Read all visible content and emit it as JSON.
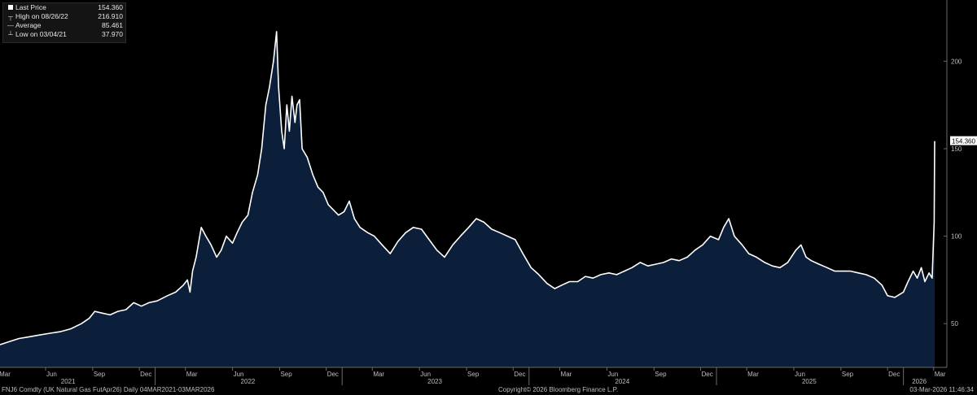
{
  "legend": {
    "items": [
      {
        "icon": "square-icon",
        "label": "Last Price",
        "value": "154.360"
      },
      {
        "icon": "high-marker-icon",
        "label": "High on 08/26/22",
        "value": "216.910"
      },
      {
        "icon": "average-marker-icon",
        "label": "Average",
        "value": "85.461"
      },
      {
        "icon": "low-marker-icon",
        "label": "Low on 03/04/21",
        "value": "37.970"
      }
    ]
  },
  "footer": {
    "left": "FNJ6 Comdty (UK Natural Gas FutApr26) Daily 04MAR2021-03MAR2026",
    "center": "Copyright© 2026 Bloomberg Finance L.P.",
    "right": "03-Mar-2026 11:46:34"
  },
  "colors": {
    "background": "#000000",
    "area_fill": "#0b1e3a",
    "line": "#ffffff"
  },
  "chart_data": {
    "type": "area",
    "title": "",
    "xlabel": "",
    "ylabel": "",
    "ylim": [
      25,
      235
    ],
    "xlim": [
      "2021-03-04",
      "2026-03-03"
    ],
    "y_axis_side": "right",
    "y_ticks": [
      50,
      100,
      150,
      200
    ],
    "last_price_label": "154.360",
    "month_ticks": [
      {
        "date": "2021-03-01",
        "label": "Mar"
      },
      {
        "date": "2021-06-01",
        "label": "Jun"
      },
      {
        "date": "2021-09-01",
        "label": "Sep"
      },
      {
        "date": "2021-12-01",
        "label": "Dec"
      },
      {
        "date": "2022-03-01",
        "label": "Mar"
      },
      {
        "date": "2022-06-01",
        "label": "Jun"
      },
      {
        "date": "2022-09-01",
        "label": "Sep"
      },
      {
        "date": "2022-12-01",
        "label": "Dec"
      },
      {
        "date": "2023-03-01",
        "label": "Mar"
      },
      {
        "date": "2023-06-01",
        "label": "Jun"
      },
      {
        "date": "2023-09-01",
        "label": "Sep"
      },
      {
        "date": "2023-12-01",
        "label": "Dec"
      },
      {
        "date": "2024-03-01",
        "label": "Mar"
      },
      {
        "date": "2024-06-01",
        "label": "Jun"
      },
      {
        "date": "2024-09-01",
        "label": "Sep"
      },
      {
        "date": "2024-12-01",
        "label": "Dec"
      },
      {
        "date": "2025-03-01",
        "label": "Mar"
      },
      {
        "date": "2025-06-01",
        "label": "Jun"
      },
      {
        "date": "2025-09-01",
        "label": "Sep"
      },
      {
        "date": "2025-12-01",
        "label": "Dec"
      },
      {
        "date": "2026-03-01",
        "label": "Mar"
      }
    ],
    "year_labels": [
      {
        "date": "2021-07-15",
        "label": "2021"
      },
      {
        "date": "2022-07-01",
        "label": "2022"
      },
      {
        "date": "2023-07-01",
        "label": "2023"
      },
      {
        "date": "2024-07-01",
        "label": "2024"
      },
      {
        "date": "2025-07-01",
        "label": "2025"
      },
      {
        "date": "2026-02-01",
        "label": "2026"
      }
    ],
    "year_boundaries": [
      "2022-01-01",
      "2023-01-01",
      "2024-01-01",
      "2025-01-01",
      "2026-01-01"
    ],
    "series": [
      {
        "values": [
          [
            "2021-03-04",
            37.97
          ],
          [
            "2021-03-20",
            39.5
          ],
          [
            "2021-04-10",
            41.5
          ],
          [
            "2021-05-01",
            42.5
          ],
          [
            "2021-05-20",
            43.5
          ],
          [
            "2021-06-10",
            44.5
          ],
          [
            "2021-07-01",
            45.5
          ],
          [
            "2021-07-20",
            47
          ],
          [
            "2021-08-10",
            50
          ],
          [
            "2021-08-25",
            53
          ],
          [
            "2021-09-05",
            57
          ],
          [
            "2021-09-20",
            56
          ],
          [
            "2021-10-05",
            55
          ],
          [
            "2021-10-20",
            57
          ],
          [
            "2021-11-05",
            58
          ],
          [
            "2021-11-20",
            62
          ],
          [
            "2021-12-05",
            60
          ],
          [
            "2021-12-20",
            62
          ],
          [
            "2022-01-05",
            63
          ],
          [
            "2022-01-25",
            66
          ],
          [
            "2022-02-10",
            68
          ],
          [
            "2022-02-25",
            72
          ],
          [
            "2022-03-05",
            75
          ],
          [
            "2022-03-10",
            68
          ],
          [
            "2022-03-15",
            80
          ],
          [
            "2022-03-22",
            88
          ],
          [
            "2022-04-01",
            105
          ],
          [
            "2022-04-10",
            100
          ],
          [
            "2022-04-20",
            95
          ],
          [
            "2022-05-01",
            88
          ],
          [
            "2022-05-10",
            92
          ],
          [
            "2022-05-20",
            100
          ],
          [
            "2022-06-01",
            96
          ],
          [
            "2022-06-10",
            102
          ],
          [
            "2022-06-20",
            108
          ],
          [
            "2022-07-01",
            112
          ],
          [
            "2022-07-10",
            125
          ],
          [
            "2022-07-20",
            135
          ],
          [
            "2022-07-28",
            150
          ],
          [
            "2022-08-05",
            175
          ],
          [
            "2022-08-12",
            185
          ],
          [
            "2022-08-20",
            200
          ],
          [
            "2022-08-26",
            216.91
          ],
          [
            "2022-08-30",
            185
          ],
          [
            "2022-09-05",
            160
          ],
          [
            "2022-09-10",
            150
          ],
          [
            "2022-09-15",
            175
          ],
          [
            "2022-09-20",
            160
          ],
          [
            "2022-09-25",
            180
          ],
          [
            "2022-10-01",
            165
          ],
          [
            "2022-10-05",
            175
          ],
          [
            "2022-10-10",
            178
          ],
          [
            "2022-10-15",
            150
          ],
          [
            "2022-10-25",
            145
          ],
          [
            "2022-11-05",
            135
          ],
          [
            "2022-11-15",
            128
          ],
          [
            "2022-11-25",
            125
          ],
          [
            "2022-12-05",
            118
          ],
          [
            "2022-12-15",
            115
          ],
          [
            "2022-12-25",
            112
          ],
          [
            "2023-01-05",
            114
          ],
          [
            "2023-01-15",
            120
          ],
          [
            "2023-01-25",
            110
          ],
          [
            "2023-02-05",
            105
          ],
          [
            "2023-02-20",
            102
          ],
          [
            "2023-03-05",
            100
          ],
          [
            "2023-03-20",
            95
          ],
          [
            "2023-04-05",
            90
          ],
          [
            "2023-04-20",
            97
          ],
          [
            "2023-05-05",
            102
          ],
          [
            "2023-05-20",
            105
          ],
          [
            "2023-06-05",
            104
          ],
          [
            "2023-06-20",
            98
          ],
          [
            "2023-07-05",
            92
          ],
          [
            "2023-07-20",
            88
          ],
          [
            "2023-08-05",
            95
          ],
          [
            "2023-08-20",
            100
          ],
          [
            "2023-09-05",
            105
          ],
          [
            "2023-09-20",
            110
          ],
          [
            "2023-10-05",
            108
          ],
          [
            "2023-10-20",
            104
          ],
          [
            "2023-11-05",
            102
          ],
          [
            "2023-11-20",
            100
          ],
          [
            "2023-12-05",
            98
          ],
          [
            "2023-12-20",
            90
          ],
          [
            "2024-01-05",
            82
          ],
          [
            "2024-01-20",
            78
          ],
          [
            "2024-02-05",
            73
          ],
          [
            "2024-02-20",
            70
          ],
          [
            "2024-03-05",
            72
          ],
          [
            "2024-03-20",
            74
          ],
          [
            "2024-04-05",
            74
          ],
          [
            "2024-04-20",
            77
          ],
          [
            "2024-05-05",
            76
          ],
          [
            "2024-05-20",
            78
          ],
          [
            "2024-06-05",
            79
          ],
          [
            "2024-06-20",
            78
          ],
          [
            "2024-07-05",
            80
          ],
          [
            "2024-07-20",
            82
          ],
          [
            "2024-08-05",
            85
          ],
          [
            "2024-08-20",
            83
          ],
          [
            "2024-09-05",
            84
          ],
          [
            "2024-09-20",
            85
          ],
          [
            "2024-10-05",
            87
          ],
          [
            "2024-10-20",
            86
          ],
          [
            "2024-11-05",
            88
          ],
          [
            "2024-11-20",
            92
          ],
          [
            "2024-12-05",
            95
          ],
          [
            "2024-12-20",
            100
          ],
          [
            "2025-01-05",
            98
          ],
          [
            "2025-01-15",
            105
          ],
          [
            "2025-01-25",
            110
          ],
          [
            "2025-02-05",
            100
          ],
          [
            "2025-02-20",
            95
          ],
          [
            "2025-03-05",
            90
          ],
          [
            "2025-03-20",
            88
          ],
          [
            "2025-04-05",
            85
          ],
          [
            "2025-04-20",
            83
          ],
          [
            "2025-05-05",
            82
          ],
          [
            "2025-05-20",
            85
          ],
          [
            "2025-06-05",
            92
          ],
          [
            "2025-06-15",
            95
          ],
          [
            "2025-06-25",
            88
          ],
          [
            "2025-07-05",
            86
          ],
          [
            "2025-07-20",
            84
          ],
          [
            "2025-08-05",
            82
          ],
          [
            "2025-08-20",
            80
          ],
          [
            "2025-09-05",
            80
          ],
          [
            "2025-09-20",
            80
          ],
          [
            "2025-10-05",
            79
          ],
          [
            "2025-10-20",
            78
          ],
          [
            "2025-11-05",
            76
          ],
          [
            "2025-11-20",
            72
          ],
          [
            "2025-12-01",
            66
          ],
          [
            "2025-12-15",
            65
          ],
          [
            "2026-01-01",
            68
          ],
          [
            "2026-01-10",
            74
          ],
          [
            "2026-01-20",
            80
          ],
          [
            "2026-01-28",
            76
          ],
          [
            "2026-02-05",
            82
          ],
          [
            "2026-02-12",
            74
          ],
          [
            "2026-02-20",
            79
          ],
          [
            "2026-02-26",
            76
          ],
          [
            "2026-03-02",
            108
          ],
          [
            "2026-03-03",
            154.36
          ]
        ]
      }
    ]
  }
}
